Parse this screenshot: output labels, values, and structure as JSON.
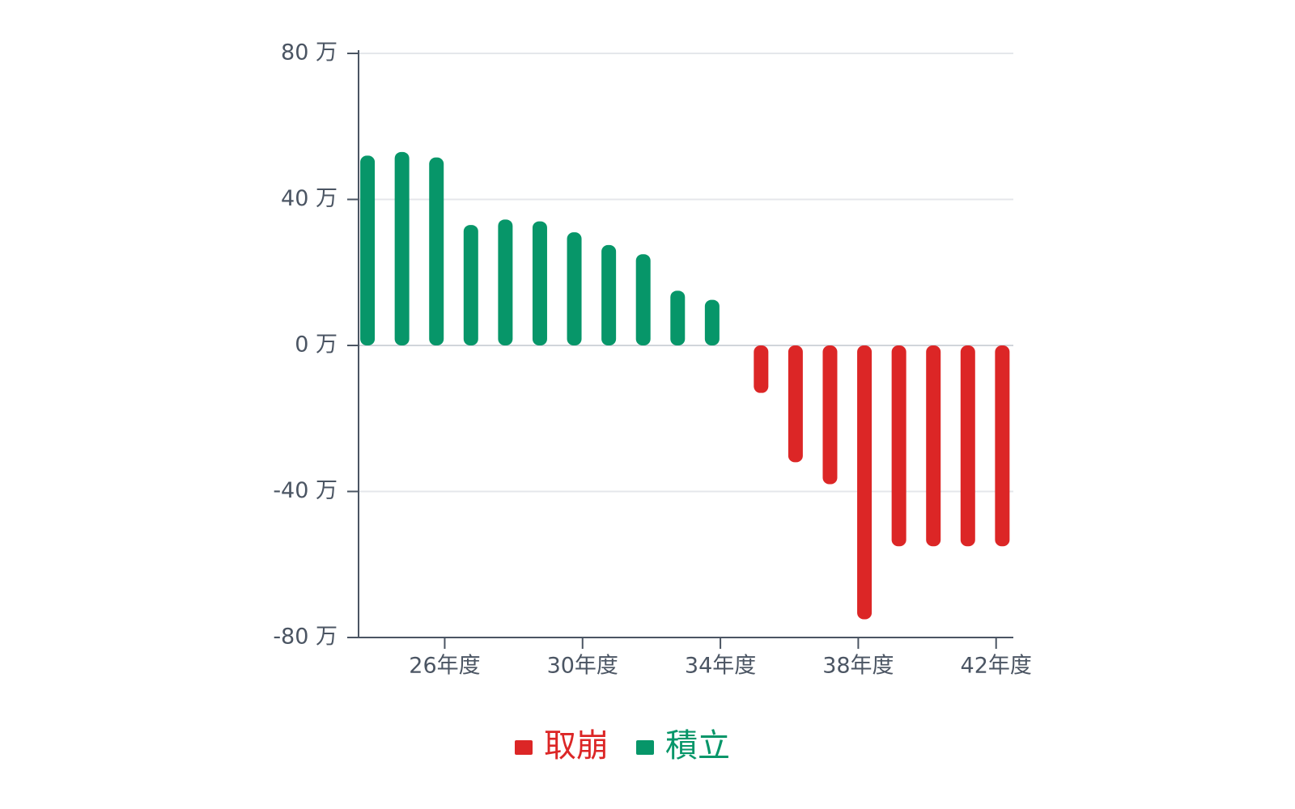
{
  "chart_data": {
    "type": "bar",
    "x": [
      24,
      25,
      26,
      27,
      28,
      29,
      30,
      31,
      32,
      33,
      34,
      35,
      36,
      37,
      38,
      39,
      40,
      41,
      42
    ],
    "xlim": [
      23.5,
      42.5
    ],
    "xticks": [
      {
        "value": 26,
        "label": "26年度"
      },
      {
        "value": 30,
        "label": "30年度"
      },
      {
        "value": 34,
        "label": "34年度"
      },
      {
        "value": 38,
        "label": "38年度"
      },
      {
        "value": 42,
        "label": "42年度"
      }
    ],
    "ylim": [
      -80,
      80
    ],
    "yticks": [
      {
        "value": -80,
        "label": "-80 万"
      },
      {
        "value": -40,
        "label": "-40 万"
      },
      {
        "value": 0,
        "label": "0 万"
      },
      {
        "value": 40,
        "label": "40 万"
      },
      {
        "value": 80,
        "label": "80 万"
      }
    ],
    "grid": true,
    "legend": "bottom",
    "series": [
      {
        "name": "取崩",
        "color": "#dc2626",
        "values": [
          null,
          null,
          null,
          null,
          null,
          null,
          null,
          null,
          null,
          null,
          null,
          -13,
          -32,
          -38,
          -75,
          -55,
          -55,
          -55,
          -55
        ]
      },
      {
        "name": "積立",
        "color": "#079669",
        "values": [
          52,
          53,
          51.5,
          33,
          34.5,
          34,
          31,
          27.5,
          25,
          15,
          12.5,
          null,
          null,
          null,
          null,
          null,
          null,
          null,
          null
        ]
      }
    ]
  }
}
